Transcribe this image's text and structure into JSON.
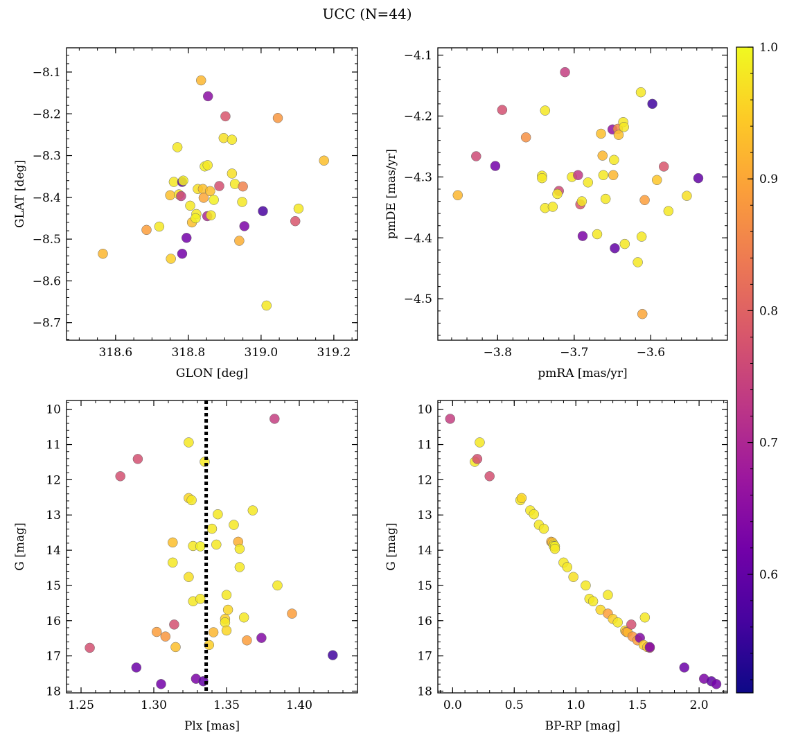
{
  "figure": {
    "title": "UCC (N=44)"
  },
  "colorbar": {
    "range": [
      0.51,
      1.0
    ],
    "ticks": [
      0.6,
      0.7,
      0.8,
      0.9,
      1.0
    ],
    "tick_labels": [
      "0.6",
      "0.7",
      "0.8",
      "0.9",
      "1.0"
    ],
    "colormap": "plasma",
    "colormap_stops": [
      "#0d0887",
      "#46039f",
      "#7201a8",
      "#9c179e",
      "#bd3786",
      "#d8576b",
      "#ed7953",
      "#fb9f3a",
      "#fdca26",
      "#f0f921"
    ]
  },
  "chart_data": [
    {
      "type": "scatter",
      "xlabel": "GLON [deg]",
      "ylabel": "GLAT [deg]",
      "xlim": [
        318.465,
        319.265
      ],
      "ylim": [
        -8.742,
        -8.042
      ],
      "x_ticks": [
        318.6,
        318.8,
        319.0,
        319.2
      ],
      "x_tick_labels": [
        "318.6",
        "318.8",
        "319.0",
        "319.2"
      ],
      "y_ticks": [
        -8.1,
        -8.2,
        -8.3,
        -8.4,
        -8.5,
        -8.6,
        -8.7
      ],
      "y_tick_labels": [
        "−8.1",
        "−8.2",
        "−8.3",
        "−8.4",
        "−8.5",
        "−8.6",
        "−8.7"
      ],
      "x_minor_step": 0.05,
      "y_minor_step": 0.02,
      "invert_y": false,
      "points": [
        {
          "x": 318.565,
          "y": -8.535,
          "c": 0.92
        },
        {
          "x": 318.685,
          "y": -8.478,
          "c": 0.89
        },
        {
          "x": 318.72,
          "y": -8.47,
          "c": 0.98
        },
        {
          "x": 318.75,
          "y": -8.395,
          "c": 0.93
        },
        {
          "x": 318.752,
          "y": -8.547,
          "c": 0.95
        },
        {
          "x": 318.76,
          "y": -8.363,
          "c": 0.98
        },
        {
          "x": 318.77,
          "y": -8.28,
          "c": 0.98
        },
        {
          "x": 318.774,
          "y": -8.393,
          "c": 0.97
        },
        {
          "x": 318.78,
          "y": -8.397,
          "c": 0.74
        },
        {
          "x": 318.783,
          "y": -8.363,
          "c": 0.59
        },
        {
          "x": 318.786,
          "y": -8.36,
          "c": 0.99
        },
        {
          "x": 318.783,
          "y": -8.535,
          "c": 0.62
        },
        {
          "x": 318.795,
          "y": -8.497,
          "c": 0.62
        },
        {
          "x": 318.805,
          "y": -8.42,
          "c": 0.98
        },
        {
          "x": 318.81,
          "y": -8.46,
          "c": 0.93
        },
        {
          "x": 318.822,
          "y": -8.44,
          "c": 0.98
        },
        {
          "x": 318.82,
          "y": -8.45,
          "c": 0.99
        },
        {
          "x": 318.826,
          "y": -8.38,
          "c": 0.97
        },
        {
          "x": 318.835,
          "y": -8.12,
          "c": 0.92
        },
        {
          "x": 318.84,
          "y": -8.38,
          "c": 0.93
        },
        {
          "x": 318.842,
          "y": -8.401,
          "c": 0.9
        },
        {
          "x": 318.845,
          "y": -8.326,
          "c": 0.99
        },
        {
          "x": 318.852,
          "y": -8.445,
          "c": 0.7
        },
        {
          "x": 318.853,
          "y": -8.323,
          "c": 0.98
        },
        {
          "x": 318.854,
          "y": -8.158,
          "c": 0.65
        },
        {
          "x": 318.86,
          "y": -8.385,
          "c": 0.93
        },
        {
          "x": 318.862,
          "y": -8.443,
          "c": 0.98
        },
        {
          "x": 318.87,
          "y": -8.406,
          "c": 0.99
        },
        {
          "x": 318.885,
          "y": -8.373,
          "c": 0.77
        },
        {
          "x": 318.897,
          "y": -8.258,
          "c": 0.97
        },
        {
          "x": 318.902,
          "y": -8.206,
          "c": 0.78
        },
        {
          "x": 318.92,
          "y": -8.262,
          "c": 0.98
        },
        {
          "x": 318.92,
          "y": -8.343,
          "c": 0.97
        },
        {
          "x": 318.928,
          "y": -8.368,
          "c": 0.98
        },
        {
          "x": 318.94,
          "y": -8.504,
          "c": 0.91
        },
        {
          "x": 318.948,
          "y": -8.411,
          "c": 0.98
        },
        {
          "x": 318.95,
          "y": -8.374,
          "c": 0.85
        },
        {
          "x": 318.954,
          "y": -8.469,
          "c": 0.63
        },
        {
          "x": 319.005,
          "y": -8.433,
          "c": 0.57
        },
        {
          "x": 319.015,
          "y": -8.659,
          "c": 0.98
        },
        {
          "x": 319.046,
          "y": -8.21,
          "c": 0.88
        },
        {
          "x": 319.094,
          "y": -8.457,
          "c": 0.78
        },
        {
          "x": 319.103,
          "y": -8.427,
          "c": 0.98
        },
        {
          "x": 319.173,
          "y": -8.312,
          "c": 0.93
        }
      ]
    },
    {
      "type": "scatter",
      "xlabel": "pmRA [mas/yr]",
      "ylabel": "pmDE [mas/yr]",
      "xlim": [
        -3.878,
        -3.5
      ],
      "ylim": [
        -4.568,
        -4.088
      ],
      "x_ticks": [
        -3.8,
        -3.7,
        -3.6
      ],
      "x_tick_labels": [
        "−3.8",
        "−3.7",
        "−3.6"
      ],
      "y_ticks": [
        -4.1,
        -4.2,
        -4.3,
        -4.4,
        -4.5
      ],
      "y_tick_labels": [
        "−4.1",
        "−4.2",
        "−4.3",
        "−4.4",
        "−4.5"
      ],
      "x_minor_step": 0.02,
      "y_minor_step": 0.02,
      "invert_y": false,
      "points": [
        {
          "x": -3.852,
          "y": -4.33,
          "c": 0.92
        },
        {
          "x": -3.828,
          "y": -4.266,
          "c": 0.76
        },
        {
          "x": -3.803,
          "y": -4.282,
          "c": 0.62
        },
        {
          "x": -3.794,
          "y": -4.19,
          "c": 0.77
        },
        {
          "x": -3.763,
          "y": -4.235,
          "c": 0.87
        },
        {
          "x": -3.742,
          "y": -4.298,
          "c": 0.98
        },
        {
          "x": -3.742,
          "y": -4.302,
          "c": 0.98
        },
        {
          "x": -3.738,
          "y": -4.191,
          "c": 0.98
        },
        {
          "x": -3.738,
          "y": -4.351,
          "c": 0.98
        },
        {
          "x": -3.728,
          "y": -4.349,
          "c": 0.98
        },
        {
          "x": -3.72,
          "y": -4.323,
          "c": 0.76
        },
        {
          "x": -3.722,
          "y": -4.328,
          "c": 0.98
        },
        {
          "x": -3.712,
          "y": -4.128,
          "c": 0.74
        },
        {
          "x": -3.703,
          "y": -4.3,
          "c": 0.98
        },
        {
          "x": -3.695,
          "y": -4.297,
          "c": 0.73
        },
        {
          "x": -3.692,
          "y": -4.345,
          "c": 0.78
        },
        {
          "x": -3.69,
          "y": -4.34,
          "c": 0.98
        },
        {
          "x": -3.689,
          "y": -4.397,
          "c": 0.63
        },
        {
          "x": -3.682,
          "y": -4.309,
          "c": 0.98
        },
        {
          "x": -3.67,
          "y": -4.394,
          "c": 0.98
        },
        {
          "x": -3.665,
          "y": -4.229,
          "c": 0.93
        },
        {
          "x": -3.663,
          "y": -4.265,
          "c": 0.92
        },
        {
          "x": -3.662,
          "y": -4.297,
          "c": 0.98
        },
        {
          "x": -3.659,
          "y": -4.336,
          "c": 0.98
        },
        {
          "x": -3.65,
          "y": -4.222,
          "c": 0.66
        },
        {
          "x": -3.649,
          "y": -4.297,
          "c": 0.92
        },
        {
          "x": -3.648,
          "y": -4.272,
          "c": 0.98
        },
        {
          "x": -3.647,
          "y": -4.417,
          "c": 0.6
        },
        {
          "x": -3.643,
          "y": -4.221,
          "c": 0.86
        },
        {
          "x": -3.642,
          "y": -4.231,
          "c": 0.93
        },
        {
          "x": -3.636,
          "y": -4.21,
          "c": 0.98
        },
        {
          "x": -3.635,
          "y": -4.218,
          "c": 0.98
        },
        {
          "x": -3.634,
          "y": -4.41,
          "c": 0.98
        },
        {
          "x": -3.617,
          "y": -4.44,
          "c": 0.98
        },
        {
          "x": -3.613,
          "y": -4.161,
          "c": 0.98
        },
        {
          "x": -3.612,
          "y": -4.398,
          "c": 0.98
        },
        {
          "x": -3.611,
          "y": -4.525,
          "c": 0.9
        },
        {
          "x": -3.608,
          "y": -4.338,
          "c": 0.89
        },
        {
          "x": -3.598,
          "y": -4.18,
          "c": 0.56
        },
        {
          "x": -3.592,
          "y": -4.305,
          "c": 0.94
        },
        {
          "x": -3.583,
          "y": -4.283,
          "c": 0.78
        },
        {
          "x": -3.577,
          "y": -4.356,
          "c": 0.98
        },
        {
          "x": -3.553,
          "y": -4.331,
          "c": 0.97
        },
        {
          "x": -3.538,
          "y": -4.302,
          "c": 0.6
        }
      ]
    },
    {
      "type": "scatter",
      "xlabel": "Plx [mas]",
      "ylabel": "G [mag]",
      "xlim": [
        1.24,
        1.44
      ],
      "ylim": [
        9.75,
        18.05
      ],
      "x_ticks": [
        1.25,
        1.3,
        1.35,
        1.4
      ],
      "x_tick_labels": [
        "1.25",
        "1.30",
        "1.35",
        "1.40"
      ],
      "y_ticks": [
        10,
        11,
        12,
        13,
        14,
        15,
        16,
        17,
        18
      ],
      "y_tick_labels": [
        "10",
        "11",
        "12",
        "13",
        "14",
        "15",
        "16",
        "17",
        "18"
      ],
      "x_minor_step": 0.01,
      "y_minor_step": 0.2,
      "invert_y": true,
      "vline": 1.336,
      "points": [
        {
          "x": 1.256,
          "y": 16.77,
          "c": 0.77
        },
        {
          "x": 1.277,
          "y": 11.9,
          "c": 0.77
        },
        {
          "x": 1.288,
          "y": 17.33,
          "c": 0.61
        },
        {
          "x": 1.289,
          "y": 11.41,
          "c": 0.77
        },
        {
          "x": 1.302,
          "y": 16.32,
          "c": 0.89
        },
        {
          "x": 1.305,
          "y": 17.8,
          "c": 0.62
        },
        {
          "x": 1.308,
          "y": 16.45,
          "c": 0.88
        },
        {
          "x": 1.313,
          "y": 13.78,
          "c": 0.93
        },
        {
          "x": 1.313,
          "y": 14.35,
          "c": 0.98
        },
        {
          "x": 1.314,
          "y": 16.11,
          "c": 0.77
        },
        {
          "x": 1.315,
          "y": 16.75,
          "c": 0.93
        },
        {
          "x": 1.324,
          "y": 10.94,
          "c": 0.98
        },
        {
          "x": 1.324,
          "y": 12.52,
          "c": 0.96
        },
        {
          "x": 1.324,
          "y": 14.76,
          "c": 0.97
        },
        {
          "x": 1.326,
          "y": 12.58,
          "c": 0.98
        },
        {
          "x": 1.327,
          "y": 15.45,
          "c": 0.98
        },
        {
          "x": 1.327,
          "y": 13.88,
          "c": 0.98
        },
        {
          "x": 1.329,
          "y": 17.65,
          "c": 0.63
        },
        {
          "x": 1.332,
          "y": 13.89,
          "c": 0.99
        },
        {
          "x": 1.332,
          "y": 15.38,
          "c": 0.98
        },
        {
          "x": 1.334,
          "y": 17.72,
          "c": 0.6
        },
        {
          "x": 1.335,
          "y": 11.49,
          "c": 0.98
        },
        {
          "x": 1.338,
          "y": 16.69,
          "c": 0.95
        },
        {
          "x": 1.34,
          "y": 13.39,
          "c": 0.98
        },
        {
          "x": 1.341,
          "y": 16.33,
          "c": 0.92
        },
        {
          "x": 1.343,
          "y": 13.84,
          "c": 0.98
        },
        {
          "x": 1.344,
          "y": 12.98,
          "c": 0.98
        },
        {
          "x": 1.349,
          "y": 15.95,
          "c": 0.95
        },
        {
          "x": 1.349,
          "y": 16.05,
          "c": 0.98
        },
        {
          "x": 1.35,
          "y": 15.27,
          "c": 0.98
        },
        {
          "x": 1.35,
          "y": 16.28,
          "c": 0.96
        },
        {
          "x": 1.351,
          "y": 15.69,
          "c": 0.96
        },
        {
          "x": 1.355,
          "y": 13.28,
          "c": 0.98
        },
        {
          "x": 1.358,
          "y": 13.76,
          "c": 0.91
        },
        {
          "x": 1.359,
          "y": 13.96,
          "c": 0.98
        },
        {
          "x": 1.359,
          "y": 14.48,
          "c": 0.98
        },
        {
          "x": 1.362,
          "y": 15.91,
          "c": 0.98
        },
        {
          "x": 1.364,
          "y": 16.56,
          "c": 0.89
        },
        {
          "x": 1.368,
          "y": 12.87,
          "c": 0.98
        },
        {
          "x": 1.374,
          "y": 16.49,
          "c": 0.64
        },
        {
          "x": 1.383,
          "y": 10.27,
          "c": 0.74
        },
        {
          "x": 1.385,
          "y": 15.0,
          "c": 0.98
        },
        {
          "x": 1.395,
          "y": 15.8,
          "c": 0.89
        },
        {
          "x": 1.423,
          "y": 16.98,
          "c": 0.56
        }
      ]
    },
    {
      "type": "scatter",
      "xlabel": "BP-RP [mag]",
      "ylabel": "G [mag]",
      "xlim": [
        -0.12,
        2.23
      ],
      "ylim": [
        9.75,
        18.05
      ],
      "x_ticks": [
        0.0,
        0.5,
        1.0,
        1.5,
        2.0
      ],
      "x_tick_labels": [
        "0.0",
        "0.5",
        "1.0",
        "1.5",
        "2.0"
      ],
      "y_ticks": [
        10,
        11,
        12,
        13,
        14,
        15,
        16,
        17,
        18
      ],
      "y_tick_labels": [
        "10",
        "11",
        "12",
        "13",
        "14",
        "15",
        "16",
        "17",
        "18"
      ],
      "x_minor_step": 0.1,
      "y_minor_step": 0.2,
      "invert_y": true,
      "points": [
        {
          "x": -0.02,
          "y": 10.27,
          "c": 0.74
        },
        {
          "x": 0.18,
          "y": 11.49,
          "c": 0.98
        },
        {
          "x": 0.2,
          "y": 11.41,
          "c": 0.77
        },
        {
          "x": 0.22,
          "y": 10.94,
          "c": 0.98
        },
        {
          "x": 0.3,
          "y": 11.9,
          "c": 0.77
        },
        {
          "x": 0.55,
          "y": 12.58,
          "c": 0.98
        },
        {
          "x": 0.56,
          "y": 12.52,
          "c": 0.96
        },
        {
          "x": 0.63,
          "y": 12.87,
          "c": 0.98
        },
        {
          "x": 0.66,
          "y": 12.98,
          "c": 0.98
        },
        {
          "x": 0.7,
          "y": 13.28,
          "c": 0.98
        },
        {
          "x": 0.74,
          "y": 13.39,
          "c": 0.98
        },
        {
          "x": 0.8,
          "y": 13.76,
          "c": 0.91
        },
        {
          "x": 0.81,
          "y": 13.78,
          "c": 0.93
        },
        {
          "x": 0.82,
          "y": 13.84,
          "c": 0.98
        },
        {
          "x": 0.82,
          "y": 13.88,
          "c": 0.98
        },
        {
          "x": 0.83,
          "y": 13.89,
          "c": 0.99
        },
        {
          "x": 0.83,
          "y": 13.96,
          "c": 0.98
        },
        {
          "x": 0.9,
          "y": 14.35,
          "c": 0.98
        },
        {
          "x": 0.93,
          "y": 14.48,
          "c": 0.98
        },
        {
          "x": 0.98,
          "y": 14.76,
          "c": 0.97
        },
        {
          "x": 1.08,
          "y": 15.0,
          "c": 0.98
        },
        {
          "x": 1.11,
          "y": 15.38,
          "c": 0.98
        },
        {
          "x": 1.14,
          "y": 15.45,
          "c": 0.98
        },
        {
          "x": 1.2,
          "y": 15.69,
          "c": 0.96
        },
        {
          "x": 1.26,
          "y": 15.27,
          "c": 0.98
        },
        {
          "x": 1.26,
          "y": 15.8,
          "c": 0.89
        },
        {
          "x": 1.3,
          "y": 15.95,
          "c": 0.95
        },
        {
          "x": 1.34,
          "y": 16.05,
          "c": 0.98
        },
        {
          "x": 1.4,
          "y": 16.28,
          "c": 0.96
        },
        {
          "x": 1.41,
          "y": 16.32,
          "c": 0.89
        },
        {
          "x": 1.42,
          "y": 16.33,
          "c": 0.92
        },
        {
          "x": 1.45,
          "y": 16.11,
          "c": 0.77
        },
        {
          "x": 1.46,
          "y": 16.45,
          "c": 0.88
        },
        {
          "x": 1.5,
          "y": 16.56,
          "c": 0.89
        },
        {
          "x": 1.52,
          "y": 16.49,
          "c": 0.64
        },
        {
          "x": 1.55,
          "y": 16.69,
          "c": 0.95
        },
        {
          "x": 1.56,
          "y": 15.91,
          "c": 0.98
        },
        {
          "x": 1.58,
          "y": 16.75,
          "c": 0.93
        },
        {
          "x": 1.6,
          "y": 16.77,
          "c": 0.77
        },
        {
          "x": 1.6,
          "y": 16.75,
          "c": 0.64
        },
        {
          "x": 1.88,
          "y": 17.33,
          "c": 0.61
        },
        {
          "x": 2.04,
          "y": 17.65,
          "c": 0.63
        },
        {
          "x": 2.1,
          "y": 17.72,
          "c": 0.6
        },
        {
          "x": 2.14,
          "y": 17.8,
          "c": 0.62
        }
      ]
    }
  ]
}
